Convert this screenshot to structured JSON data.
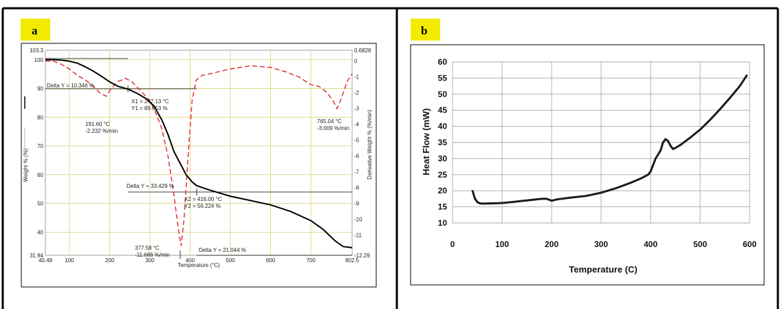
{
  "chart_data": [
    {
      "type": "line",
      "panel_label": "a",
      "title": "",
      "xlabel": "Temperature (°C)",
      "ylabel": "Weight % (%)",
      "y2label": "Derivative Weight % (%/min)",
      "xlim": [
        40.49,
        802.5
      ],
      "ylim": [
        31.94,
        103.3
      ],
      "y2lim": [
        -12.29,
        0.6828
      ],
      "x_ticks": [
        "40.49",
        "100",
        "200",
        "300",
        "400",
        "500",
        "600",
        "700",
        "802.5"
      ],
      "y_ticks": [
        "103.3",
        "100",
        "90",
        "80",
        "70",
        "60",
        "50",
        "40",
        "31.94"
      ],
      "y2_ticks": [
        "0.6828",
        "0",
        "-1",
        "-2",
        "-3",
        "-4",
        "-5",
        "-6",
        "-7",
        "-8",
        "-9",
        "-10",
        "-11",
        "-12.29"
      ],
      "grid": true,
      "series": [
        {
          "axis": "left",
          "color": "#000000",
          "style": "solid",
          "x": [
            40.49,
            60,
            80,
            100,
            120,
            140,
            160,
            180,
            200,
            220,
            247,
            270,
            290,
            310,
            330,
            345,
            360,
            375,
            390,
            405,
            416,
            450,
            500,
            550,
            600,
            650,
            700,
            730,
            760,
            780,
            802.5
          ],
          "y": [
            100,
            100,
            99.9,
            99.5,
            98.8,
            97.5,
            96,
            94.2,
            92.3,
            90.8,
            89.7,
            88.2,
            86.5,
            84,
            79,
            74,
            68,
            64,
            60,
            57.5,
            56.2,
            54.6,
            52.5,
            51,
            49.5,
            47.2,
            44,
            41,
            37,
            35,
            34.6
          ]
        },
        {
          "axis": "right",
          "color": "#dd3333",
          "style": "dashed",
          "x": [
            40.49,
            60,
            80,
            100,
            120,
            140,
            160,
            175,
            191.6,
            205,
            220,
            240,
            255,
            270,
            285,
            300,
            315,
            330,
            345,
            360,
            370,
            377.58,
            385,
            395,
            405,
            415,
            430,
            450,
            500,
            550,
            600,
            640,
            670,
            700,
            720,
            740,
            755,
            765.04,
            775,
            790,
            802.5
          ],
          "y": [
            0,
            0,
            -0.2,
            -0.5,
            -0.9,
            -1.2,
            -1.6,
            -2.0,
            -2.23,
            -1.7,
            -1.3,
            -1.1,
            -1.3,
            -1.7,
            -2.1,
            -2.5,
            -3.3,
            -4.3,
            -6,
            -8.5,
            -10.5,
            -11.69,
            -10,
            -6,
            -2.5,
            -1.2,
            -0.9,
            -0.8,
            -0.5,
            -0.3,
            -0.4,
            -0.7,
            -1.0,
            -1.5,
            -1.6,
            -2.0,
            -2.5,
            -3.01,
            -2.4,
            -1.3,
            -0.8
          ]
        }
      ],
      "annotations": [
        {
          "text": "Delta Y = 10.346 %"
        },
        {
          "text_lines": [
            "X1 = 247.13 °C",
            "Y1 = 89.653 %"
          ]
        },
        {
          "text_lines": [
            "191.60 °C",
            "-2.232 %/min"
          ]
        },
        {
          "text_lines": [
            "765.04 °C",
            "-3.009 %/min"
          ]
        },
        {
          "text": "Delta Y = 33.429 %"
        },
        {
          "text_lines": [
            "X2 = 416.00 °C",
            "Y2 = 56.224 %"
          ]
        },
        {
          "text_lines": [
            "377.58 °C",
            "-11.686 %/min"
          ]
        },
        {
          "text": "Delta Y = 21.044 %"
        }
      ]
    },
    {
      "type": "line",
      "panel_label": "b",
      "title": "",
      "xlabel": "Temperature (C)",
      "ylabel": "Heat Flow (mW)",
      "xlim": [
        0,
        600
      ],
      "ylim": [
        10,
        60
      ],
      "x_ticks": [
        "0",
        "100",
        "200",
        "300",
        "400",
        "500",
        "600"
      ],
      "y_ticks": [
        "10",
        "15",
        "20",
        "25",
        "30",
        "35",
        "40",
        "45",
        "50",
        "55",
        "60"
      ],
      "grid": true,
      "series": [
        {
          "color": "#111111",
          "x": [
            40,
            45,
            50,
            55,
            60,
            80,
            100,
            120,
            150,
            180,
            190,
            200,
            210,
            240,
            270,
            300,
            330,
            360,
            380,
            395,
            400,
            405,
            410,
            420,
            425,
            430,
            435,
            440,
            445,
            450,
            460,
            480,
            500,
            520,
            540,
            560,
            580,
            595
          ],
          "y": [
            20.2,
            17.6,
            16.5,
            16.1,
            16.0,
            16.1,
            16.2,
            16.5,
            17.0,
            17.5,
            17.5,
            16.9,
            17.3,
            17.9,
            18.4,
            19.4,
            20.8,
            22.5,
            23.8,
            25.0,
            26.0,
            28.0,
            30.0,
            32.5,
            35.0,
            36.0,
            35.5,
            34.0,
            33.0,
            33.3,
            34.2,
            36.5,
            39.0,
            42.0,
            45.3,
            48.8,
            52.5,
            56.0
          ]
        }
      ]
    }
  ]
}
